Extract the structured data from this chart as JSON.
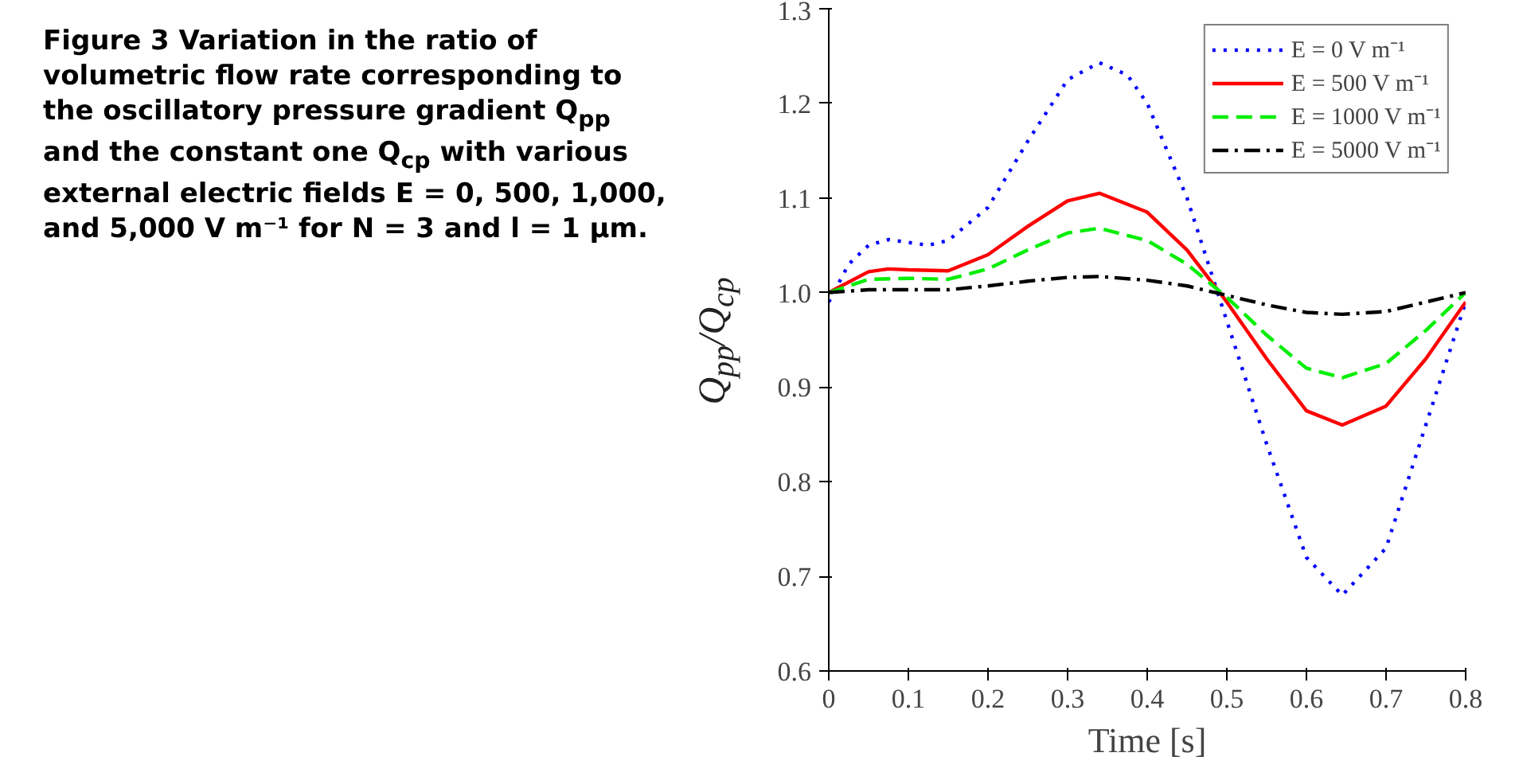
{
  "chart_data": {
    "type": "line",
    "title": "Figure 3  Variation in the ratio of volumetric flow rate corresponding to the oscillatory pressure gradient Q$_{pp}$ and the constant one Q$_{cp}$ with various external electric fields E = 0, 500, 1,000, and 5,000 V m⁻¹ for N = 3 and l = 1 μm.",
    "xlabel": "Time [s]",
    "ylabel": "Q$_{pp}$/Q$_{cp}$",
    "xlim": [
      0,
      0.8
    ],
    "ylim": [
      0.6,
      1.3
    ],
    "xticks": [
      0,
      0.1,
      0.2,
      0.3,
      0.4,
      0.5,
      0.6,
      0.7,
      0.8
    ],
    "yticks": [
      0.6,
      0.7,
      0.8,
      0.9,
      {
        "value": 1,
        "label": "1.0"
      },
      1.1,
      1.2,
      1.3
    ],
    "grid": false,
    "legend": "top right",
    "series": [
      {
        "name": "E = 0 V m⁻¹",
        "color": "#0000ff",
        "line_style": "dotted",
        "x": [
          0,
          0.025,
          0.05,
          0.075,
          0.1,
          0.125,
          0.15,
          0.2,
          0.25,
          0.3,
          0.34,
          0.375,
          0.4,
          0.45,
          0.5,
          0.55,
          0.6,
          0.645,
          0.7,
          0.75,
          0.8
        ],
        "values": [
          0.99,
          1.03,
          1.05,
          1.056,
          1.053,
          1.05,
          1.055,
          1.09,
          1.16,
          1.225,
          1.243,
          1.23,
          1.2,
          1.1,
          0.97,
          0.84,
          0.72,
          0.68,
          0.73,
          0.86,
          0.99
        ]
      },
      {
        "name": "E = 500 V m⁻¹",
        "color": "#ff0000",
        "line_style": "solid",
        "x": [
          0,
          0.05,
          0.075,
          0.1,
          0.15,
          0.2,
          0.25,
          0.3,
          0.34,
          0.4,
          0.45,
          0.5,
          0.55,
          0.6,
          0.645,
          0.7,
          0.75,
          0.8
        ],
        "values": [
          1.0,
          1.022,
          1.025,
          1.024,
          1.023,
          1.04,
          1.07,
          1.097,
          1.105,
          1.085,
          1.045,
          0.99,
          0.93,
          0.875,
          0.86,
          0.88,
          0.93,
          0.99
        ]
      },
      {
        "name": "E = 1000 V m⁻¹",
        "color": "#00ee00",
        "line_style": "dashed",
        "x": [
          0,
          0.05,
          0.1,
          0.15,
          0.2,
          0.25,
          0.3,
          0.34,
          0.4,
          0.45,
          0.5,
          0.55,
          0.6,
          0.645,
          0.7,
          0.75,
          0.8
        ],
        "values": [
          1.0,
          1.014,
          1.015,
          1.014,
          1.025,
          1.045,
          1.063,
          1.068,
          1.055,
          1.03,
          0.995,
          0.955,
          0.92,
          0.91,
          0.925,
          0.96,
          1.0
        ]
      },
      {
        "name": "E = 5000 V m⁻¹",
        "color": "#000000",
        "line_style": "dashdot",
        "x": [
          0,
          0.05,
          0.1,
          0.15,
          0.2,
          0.25,
          0.3,
          0.34,
          0.4,
          0.45,
          0.5,
          0.55,
          0.6,
          0.645,
          0.7,
          0.75,
          0.8
        ],
        "values": [
          1.0,
          1.003,
          1.003,
          1.003,
          1.007,
          1.012,
          1.016,
          1.017,
          1.013,
          1.007,
          0.997,
          0.987,
          0.979,
          0.977,
          0.98,
          0.99,
          1.0
        ]
      }
    ]
  }
}
